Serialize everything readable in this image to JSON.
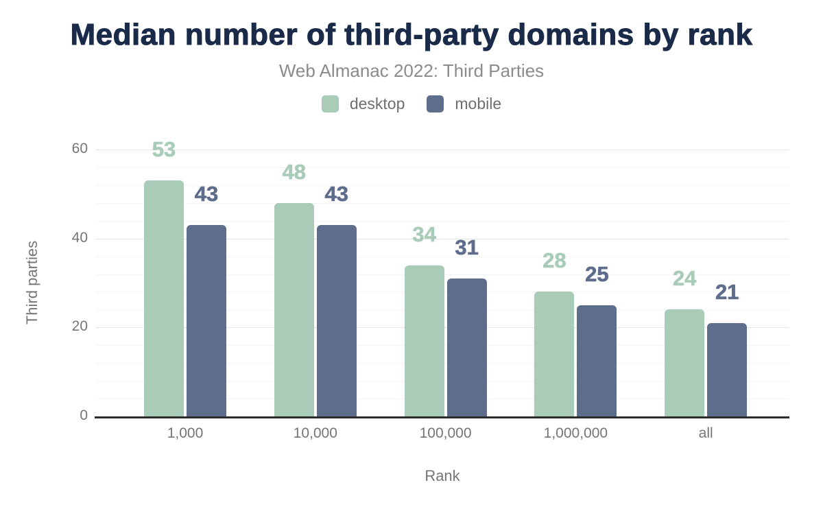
{
  "header": {
    "title": "Median number of third-party domains by rank",
    "subtitle": "Web Almanac 2022: Third Parties"
  },
  "legend": {
    "items": [
      {
        "label": "desktop",
        "color": "#a8ccb8"
      },
      {
        "label": "mobile",
        "color": "#5d6d8b"
      }
    ]
  },
  "chart_data": {
    "type": "bar",
    "title": "Median number of third-party domains by rank",
    "subtitle": "Web Almanac 2022: Third Parties",
    "categories": [
      "1,000",
      "10,000",
      "100,000",
      "1,000,000",
      "all"
    ],
    "series": [
      {
        "name": "desktop",
        "color": "#a8ccb8",
        "values": [
          53,
          48,
          34,
          28,
          24
        ]
      },
      {
        "name": "mobile",
        "color": "#5d6d8b",
        "values": [
          43,
          43,
          31,
          25,
          21
        ]
      }
    ],
    "xlabel": "Rank",
    "ylabel": "Third parties",
    "ylim": [
      0,
      60
    ],
    "yticks": [
      0,
      20,
      40,
      60
    ],
    "minor_grid_step": 4,
    "grid": true,
    "legend_position": "top",
    "data_labels": true,
    "data_label_style": "bold, colored same as series, above bar"
  },
  "colors": {
    "title": "#1a2b49",
    "subtitle": "#8b8b8b",
    "axis_text": "#757575",
    "legend_text": "#6e6e6e",
    "desktop": "#a8ccb8",
    "mobile": "#5d6d8b",
    "axis_line": "#2d2d2d",
    "grid_major": "#e4e4e4",
    "grid_minor": "#f4f4f4",
    "background": "#ffffff"
  }
}
